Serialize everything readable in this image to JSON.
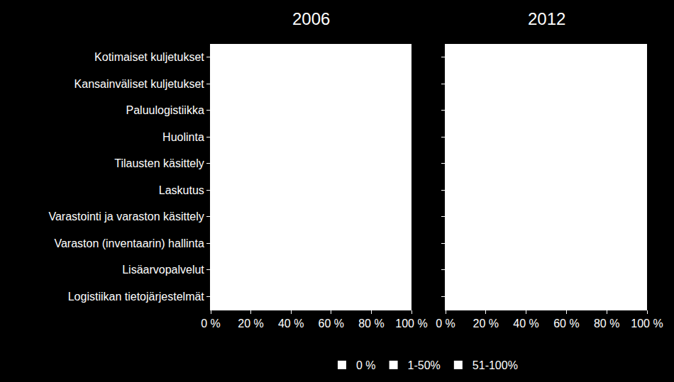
{
  "chart_data": [
    {
      "type": "bar",
      "title": "2006",
      "orientation": "horizontal",
      "stacked": true,
      "legend": "bottom",
      "categories": [
        "Kotimaiset kuljetukset",
        "Kansainväliset kuljetukset",
        "Paluulogistiikka",
        "Huolinta",
        "Tilausten käsittely",
        "Laskutus",
        "Varastointi ja varaston käsittely",
        "Varaston (inventaarin) hallinta",
        "Lisäarvopalvelut",
        "Logistiikan tietojärjestelmät"
      ],
      "series": [
        {
          "name": "0 %",
          "color": "#ffffff",
          "values": [
            null,
            null,
            null,
            null,
            null,
            null,
            null,
            null,
            null,
            null
          ]
        },
        {
          "name": "1-50%",
          "color": "#ffffff",
          "values": [
            null,
            null,
            null,
            null,
            null,
            null,
            null,
            null,
            null,
            null
          ]
        },
        {
          "name": "51-100%",
          "color": "#ffffff",
          "values": [
            null,
            null,
            null,
            null,
            null,
            null,
            null,
            null,
            null,
            null
          ]
        }
      ],
      "xlim": [
        0,
        100
      ],
      "xticks": [
        {
          "value": 0,
          "label": "0 %"
        },
        {
          "value": 20,
          "label": "20 %"
        },
        {
          "value": 40,
          "label": "40 %"
        },
        {
          "value": 60,
          "label": "60 %"
        },
        {
          "value": 80,
          "label": "80 %"
        },
        {
          "value": 100,
          "label": "100 %"
        }
      ]
    },
    {
      "type": "bar",
      "title": "2012",
      "orientation": "horizontal",
      "stacked": true,
      "tick_labels": "x",
      "categories": [
        "Kotimaiset kuljetukset",
        "Kansainväliset kuljetukset",
        "Paluulogistiikka",
        "Huolinta",
        "Tilausten käsittely",
        "Laskutus",
        "Varastointi ja varaston käsittely",
        "Varaston (inventaarin) hallinta",
        "Lisäarvopalvelut",
        "Logistiikan tietojärjestelmät"
      ],
      "series": [
        {
          "name": "0 %",
          "color": "#ffffff",
          "values": [
            null,
            null,
            null,
            null,
            null,
            null,
            null,
            null,
            null,
            null
          ]
        },
        {
          "name": "1-50%",
          "color": "#ffffff",
          "values": [
            null,
            null,
            null,
            null,
            null,
            null,
            null,
            null,
            null,
            null
          ]
        },
        {
          "name": "51-100%",
          "color": "#ffffff",
          "values": [
            null,
            null,
            null,
            null,
            null,
            null,
            null,
            null,
            null,
            null
          ]
        }
      ],
      "xlim": [
        0,
        100
      ],
      "xticks": [
        {
          "value": 0,
          "label": "0 %"
        },
        {
          "value": 20,
          "label": "20 %"
        },
        {
          "value": 40,
          "label": "40 %"
        },
        {
          "value": 60,
          "label": "60 %"
        },
        {
          "value": 80,
          "label": "80 %"
        },
        {
          "value": 100,
          "label": "100 %"
        }
      ]
    }
  ]
}
